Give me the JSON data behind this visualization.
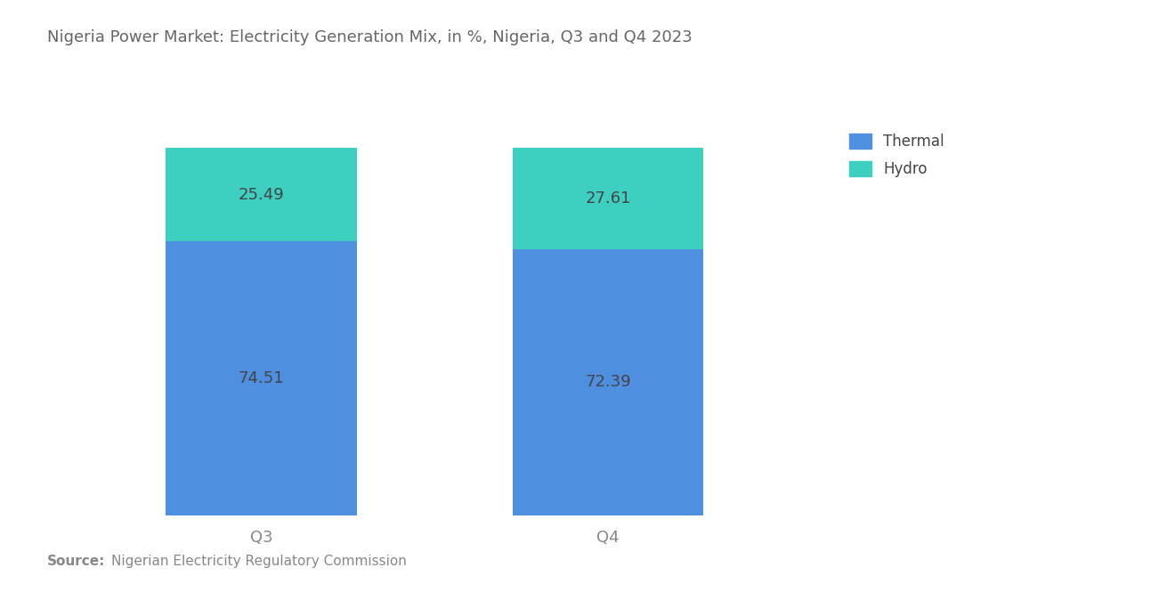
{
  "title": "Nigeria Power Market: Electricity Generation Mix, in %, Nigeria, Q3 and Q4 2023",
  "categories": [
    "Q3",
    "Q4"
  ],
  "thermal_values": [
    74.51,
    72.39
  ],
  "hydro_values": [
    25.49,
    27.61
  ],
  "thermal_color": "#4F8FE0",
  "hydro_color": "#3DCFBF",
  "thermal_label": "Thermal",
  "hydro_label": "Hydro",
  "source_bold": "Source:",
  "source_text": "Nigerian Electricity Regulatory Commission",
  "title_color": "#666666",
  "label_color": "#444444",
  "source_color": "#888888",
  "tick_label_color": "#888888",
  "bar_width": 0.55,
  "ylim": [
    0,
    100
  ],
  "background_color": "#ffffff",
  "label_fontsize": 13,
  "title_fontsize": 13,
  "tick_fontsize": 13,
  "legend_fontsize": 12
}
